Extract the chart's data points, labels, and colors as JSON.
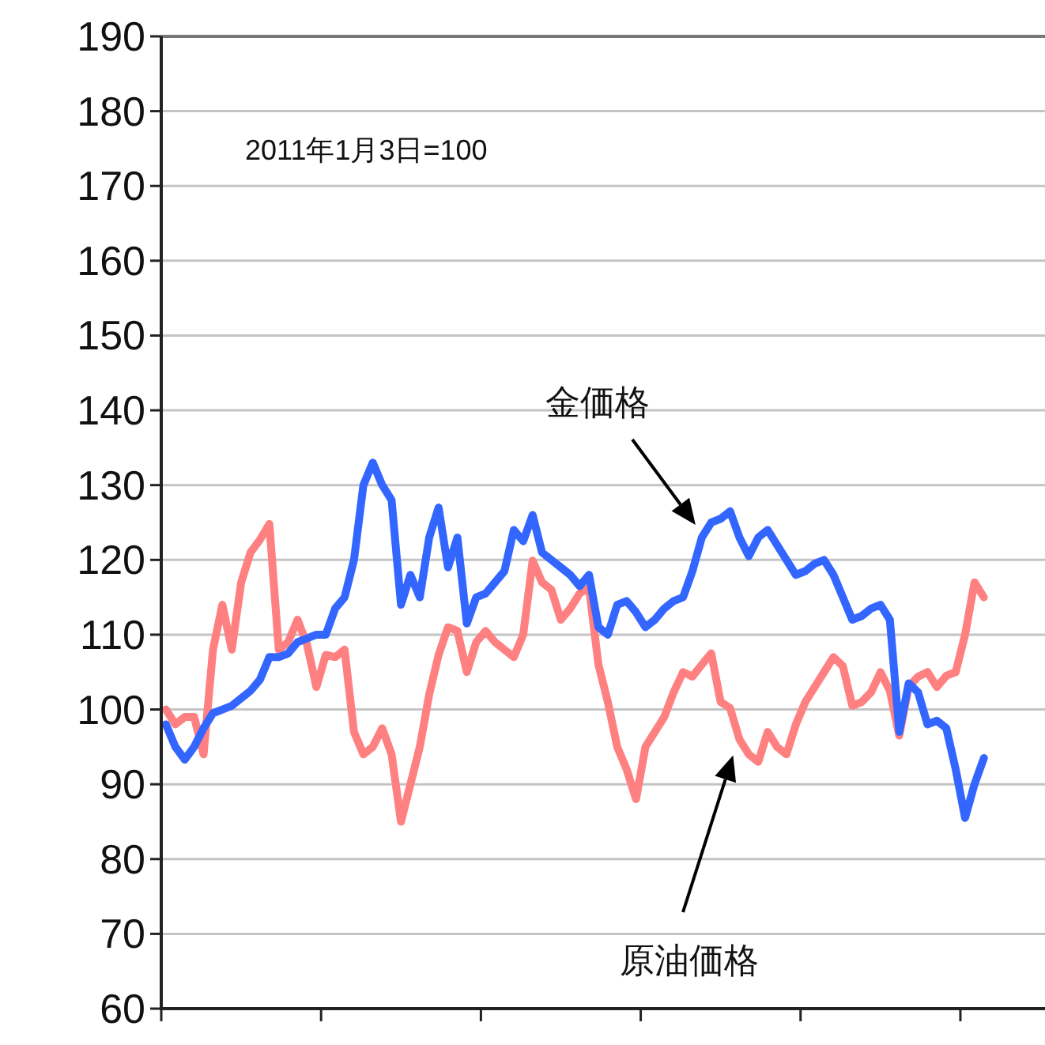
{
  "chart_data": {
    "type": "line",
    "annotations": [
      "2011年1月3日=100"
    ],
    "categories": [
      null,
      null,
      null,
      null,
      null,
      null,
      null,
      null,
      null,
      null,
      null,
      null,
      null,
      null,
      null,
      null,
      null,
      null,
      null,
      null,
      null,
      null,
      null,
      null,
      null,
      null,
      null,
      null,
      null,
      null,
      null,
      null,
      null,
      null,
      null,
      null,
      null,
      null,
      null,
      null,
      null,
      null,
      null,
      null,
      null,
      null,
      null,
      null,
      null,
      null,
      null,
      null,
      null,
      null,
      null,
      null,
      null,
      null,
      null,
      null,
      null,
      null,
      null,
      null,
      null,
      null,
      null,
      null,
      null,
      null,
      null,
      null,
      null,
      null,
      null,
      null,
      null,
      null,
      null,
      null,
      null,
      null,
      null,
      null,
      null,
      null,
      null,
      null,
      null,
      null,
      null,
      null,
      null,
      null
    ],
    "series": [
      {
        "name": "金価格",
        "color": "#3366ff",
        "values": [
          98,
          95,
          93.3,
          95,
          97.5,
          99.5,
          100,
          100.5,
          101.5,
          102.5,
          104,
          107,
          107,
          107.5,
          109,
          109.5,
          110,
          110,
          113.5,
          115,
          120,
          130,
          133,
          130,
          128,
          114,
          118,
          115,
          123,
          127,
          119,
          123,
          111.5,
          115,
          115.5,
          117,
          118.5,
          124,
          122.5,
          126,
          121,
          120,
          119,
          118,
          116.5,
          118,
          111,
          110,
          114,
          114.5,
          113,
          111,
          112,
          113.5,
          114.5,
          115,
          118.5,
          123,
          125,
          125.5,
          126.5,
          123,
          120.5,
          123,
          124,
          122,
          120,
          118,
          118.5,
          119.5,
          120,
          118,
          115,
          112,
          112.5,
          113.5,
          114,
          112,
          97,
          103.5,
          102.3,
          98,
          98.5,
          97.5,
          92,
          85.5,
          90,
          93.5,
          null,
          null,
          null,
          null,
          null,
          null
        ]
      },
      {
        "name": "原油価格",
        "color": "#ff8080",
        "values": [
          100,
          98,
          99,
          99,
          94,
          108,
          114,
          108,
          117,
          121,
          122.7,
          124.8,
          108,
          109,
          112,
          108.7,
          103,
          107.3,
          107,
          108,
          97,
          94,
          95,
          97.5,
          94,
          85,
          90,
          95,
          102,
          107.3,
          111,
          110.5,
          105,
          109,
          110.5,
          109,
          108,
          107,
          110,
          119.9,
          117,
          116,
          112,
          113.5,
          115.5,
          116.3,
          106,
          101,
          95,
          92,
          88,
          95,
          97,
          99,
          102.3,
          105,
          104.4,
          106,
          107.5,
          101,
          100.2,
          96,
          94,
          93,
          97,
          95,
          94,
          98,
          101,
          103,
          105,
          107,
          105.8,
          100.5,
          101,
          102.3,
          105,
          102.5,
          96.5,
          103,
          104.4,
          105,
          103,
          104.5,
          105,
          110,
          117,
          115,
          null,
          null,
          null,
          null,
          null,
          null
        ]
      }
    ],
    "ylim": [
      60,
      190
    ],
    "yticks": [
      60,
      70,
      80,
      90,
      100,
      110,
      120,
      130,
      140,
      150,
      160,
      170,
      180,
      190
    ],
    "grid": "y",
    "line_style": "solid",
    "marker": "none"
  }
}
